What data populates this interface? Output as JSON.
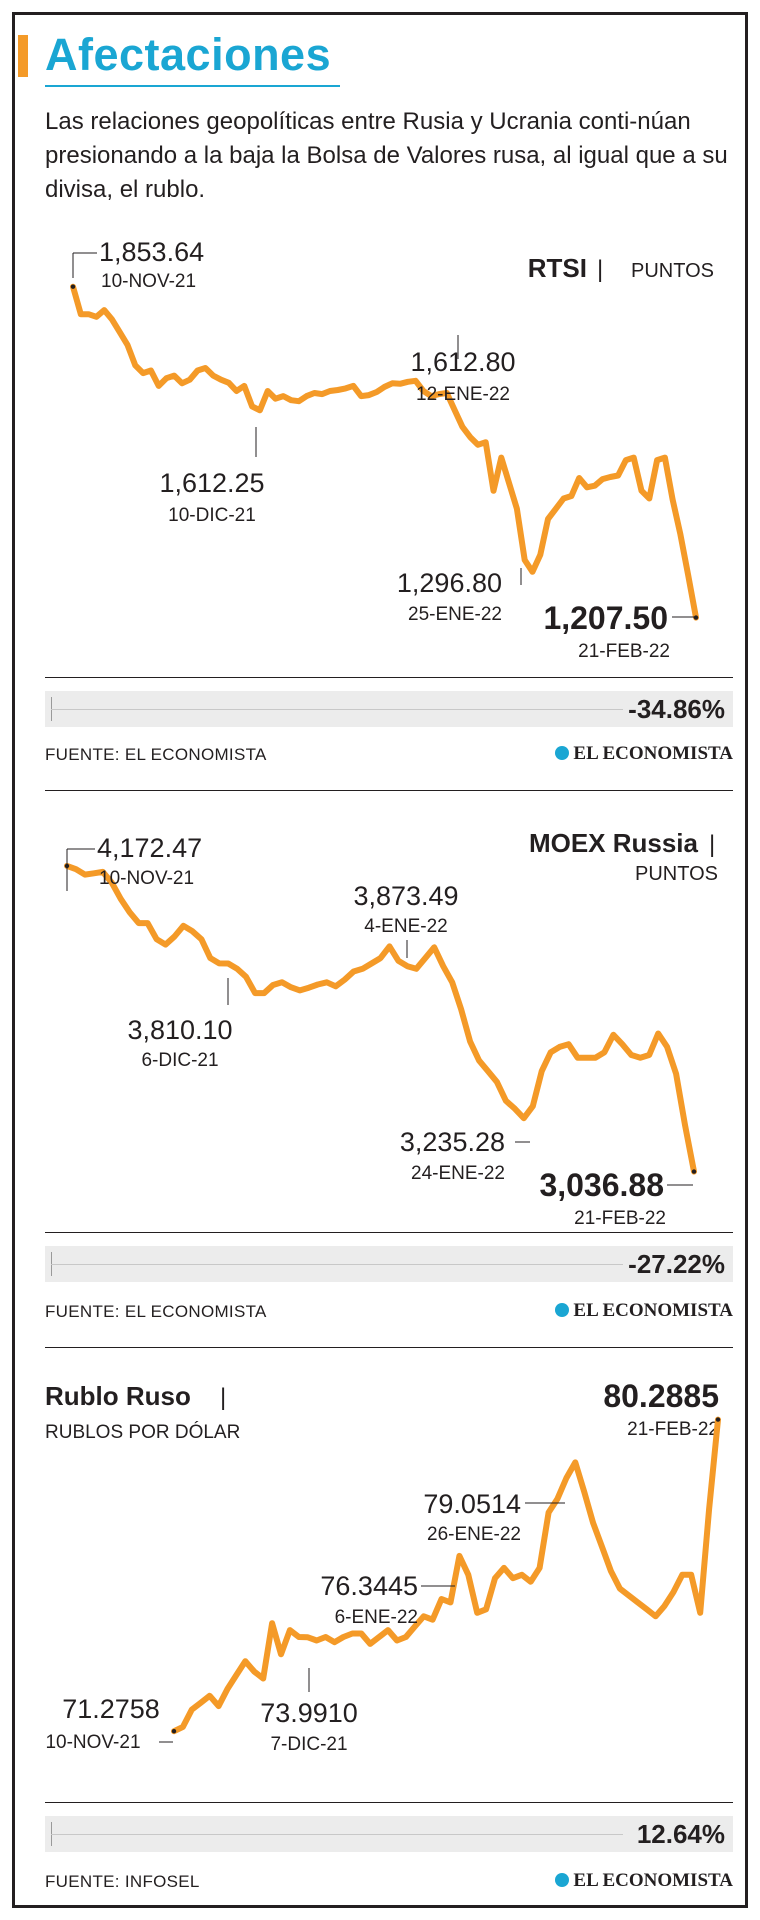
{
  "header": {
    "title": "Afectaciones",
    "subtitle": "Las relaciones geopolíticas entre Rusia y Ucrania conti-núan presionando a la baja la Bolsa de Valores rusa, al igual que a su divisa, el rublo."
  },
  "colors": {
    "accent": "#f49a28",
    "title": "#1aa6d3",
    "text": "#231f20",
    "band": "#ececec"
  },
  "brand": "EL ECONOMISTA",
  "charts": [
    {
      "name": "RTSI",
      "unit": "PUNTOS",
      "change": "-34.86%",
      "source": "FUENTE: EL ECONOMISTA",
      "annotations": [
        {
          "value": "1,853.64",
          "date": "10-NOV-21"
        },
        {
          "value": "1,612.80",
          "date": "12-ENE-22"
        },
        {
          "value": "1,612.25",
          "date": "10-DIC-21"
        },
        {
          "value": "1,296.80",
          "date": "25-ENE-22"
        },
        {
          "value": "1,207.50",
          "date": "21-FEB-22"
        }
      ]
    },
    {
      "name": "MOEX Russia",
      "unit": "PUNTOS",
      "change": "-27.22%",
      "source": "FUENTE: EL ECONOMISTA",
      "annotations": [
        {
          "value": "4,172.47",
          "date": "10-NOV-21"
        },
        {
          "value": "3,873.49",
          "date": "4-ENE-22"
        },
        {
          "value": "3,810.10",
          "date": "6-DIC-21"
        },
        {
          "value": "3,235.28",
          "date": "24-ENE-22"
        },
        {
          "value": "3,036.88",
          "date": "21-FEB-22"
        }
      ]
    },
    {
      "name": "Rublo Ruso",
      "unit": "RUBLOS POR DÓLAR",
      "change": "12.64%",
      "source": "FUENTE: INFOSEL",
      "annotations": [
        {
          "value": "80.2885",
          "date": "21-FEB-22"
        },
        {
          "value": "79.0514",
          "date": "26-ENE-22"
        },
        {
          "value": "76.3445",
          "date": "6-ENE-22"
        },
        {
          "value": "73.9910",
          "date": "7-DIC-21"
        },
        {
          "value": "71.2758",
          "date": "10-NOV-21"
        }
      ]
    }
  ],
  "chart_data": [
    {
      "type": "line",
      "title": "RTSI",
      "ylabel": "PUNTOS",
      "x_start": "2021-11-10",
      "x_end": "2022-02-21",
      "ylim": [
        1150,
        1900
      ],
      "values": [
        1853.64,
        1800,
        1800,
        1795,
        1808,
        1790,
        1765,
        1740,
        1700,
        1685,
        1690,
        1660,
        1675,
        1680,
        1665,
        1672,
        1690,
        1695,
        1680,
        1672,
        1666,
        1650,
        1660,
        1620,
        1612.25,
        1650,
        1635,
        1640,
        1632,
        1630,
        1640,
        1646,
        1644,
        1650,
        1652,
        1655,
        1660,
        1640,
        1642,
        1648,
        1658,
        1665,
        1664,
        1668,
        1670,
        1650,
        1640,
        1644,
        1646,
        1612.8,
        1580,
        1560,
        1545,
        1550,
        1455,
        1520,
        1470,
        1420,
        1320,
        1296.8,
        1330,
        1400,
        1420,
        1440,
        1445,
        1480,
        1462,
        1465,
        1478,
        1482,
        1485,
        1515,
        1520,
        1455,
        1440,
        1515,
        1520,
        1438,
        1370,
        1290,
        1207.5
      ]
    },
    {
      "type": "line",
      "title": "MOEX Russia",
      "ylabel": "PUNTOS",
      "x_start": "2021-11-10",
      "x_end": "2022-02-21",
      "ylim": [
        2950,
        4250
      ],
      "values": [
        4172.47,
        4160,
        4140,
        4145,
        4150,
        4110,
        4050,
        4000,
        3960,
        3960,
        3900,
        3880,
        3910,
        3950,
        3930,
        3900,
        3830,
        3810.1,
        3810,
        3790,
        3760,
        3700,
        3700,
        3730,
        3740,
        3722,
        3710,
        3720,
        3732,
        3740,
        3725,
        3750,
        3780,
        3790,
        3810,
        3830,
        3873.49,
        3820,
        3800,
        3790,
        3830,
        3870,
        3800,
        3740,
        3640,
        3520,
        3450,
        3410,
        3370,
        3300,
        3270,
        3235.28,
        3280,
        3410,
        3480,
        3500,
        3510,
        3460,
        3460,
        3460,
        3480,
        3545,
        3510,
        3470,
        3460,
        3470,
        3550,
        3500,
        3400,
        3210,
        3036.88
      ]
    },
    {
      "type": "line",
      "title": "Rublo Ruso",
      "ylabel": "RUBLOS POR DÓLAR",
      "x_start": "2021-11-10",
      "x_end": "2022-02-21",
      "ylim": [
        70.5,
        81
      ],
      "values": [
        71.2758,
        71.4,
        71.9,
        72.1,
        72.3,
        72.0,
        72.5,
        72.9,
        73.3,
        73.0,
        72.8,
        74.4,
        73.5,
        74.2,
        74.0,
        73.991,
        73.9,
        74.0,
        73.85,
        74.0,
        74.1,
        74.1,
        73.8,
        74.0,
        74.2,
        73.9,
        74.0,
        74.3,
        74.6,
        74.5,
        75.1,
        75.0,
        76.3445,
        75.8,
        74.7,
        74.8,
        75.7,
        76.0,
        75.7,
        75.8,
        75.6,
        76.0,
        77.6,
        78.0,
        78.6,
        79.0514,
        78.2,
        77.3,
        76.6,
        75.9,
        75.4,
        75.2,
        75.0,
        74.8,
        74.6,
        74.9,
        75.3,
        75.8,
        75.8,
        74.7,
        77.7,
        80.2885
      ]
    }
  ]
}
